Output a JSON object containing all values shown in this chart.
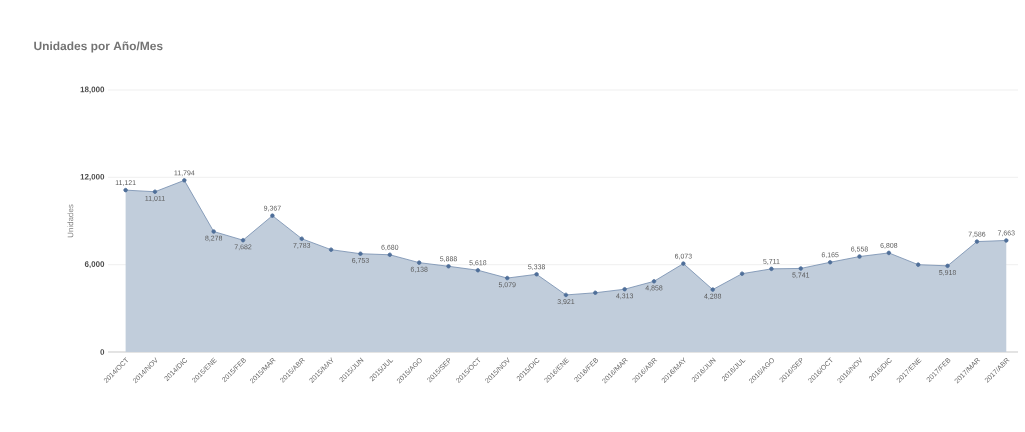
{
  "chart_data": {
    "type": "area",
    "title": "Unidades por Año/Mes",
    "ylabel": "Unidades",
    "categories": [
      "2014/OCT",
      "2014/NOV",
      "2014/DIC",
      "2015/ENE",
      "2015/FEB",
      "2015/MAR",
      "2015/ABR",
      "2015/MAY",
      "2015/JUN",
      "2015/JUL",
      "2015/AGO",
      "2015/SEP",
      "2015/OCT",
      "2015/NOV",
      "2015/DIC",
      "2016/ENE",
      "2016/FEB",
      "2016/MAR",
      "2016/ABR",
      "2016/MAY",
      "2016/JUN",
      "2016/JUL",
      "2016/AGO",
      "2016/SEP",
      "2016/OCT",
      "2016/NOV",
      "2016/DIC",
      "2017/ENE",
      "2017/FEB",
      "2017/MAR",
      "2017/ABR"
    ],
    "values": [
      11121,
      11011,
      11794,
      8278,
      7682,
      9367,
      7783,
      7030,
      6753,
      6680,
      6138,
      5888,
      5618,
      5079,
      5338,
      3921,
      4070,
      4313,
      4858,
      6073,
      4288,
      5380,
      5711,
      5741,
      6165,
      6558,
      6808,
      6000,
      5918,
      7586,
      7663
    ],
    "value_labels": [
      "11,121",
      "11,011",
      "11,794",
      "8,278",
      "7,682",
      "9,367",
      "7,783",
      null,
      "6,753",
      "6,680",
      "6,138",
      "5,888",
      "5,618",
      "5,079",
      "5,338",
      "3,921",
      null,
      "4,313",
      "4,858",
      "6,073",
      "4,288",
      null,
      "5,711",
      "5,741",
      "6,165",
      "6,558",
      "6,808",
      null,
      "5,918",
      "7,586",
      "7,663"
    ],
    "color": "#4f6f99",
    "ylim": [
      0,
      18000
    ],
    "yticks": [
      0,
      {
        "value": 6000,
        "label": "6,000"
      },
      {
        "value": 12000,
        "label": "12,000"
      },
      {
        "value": 18000,
        "label": "18,000"
      }
    ],
    "grid": "y",
    "marker": "circle",
    "line_style": "solid"
  }
}
